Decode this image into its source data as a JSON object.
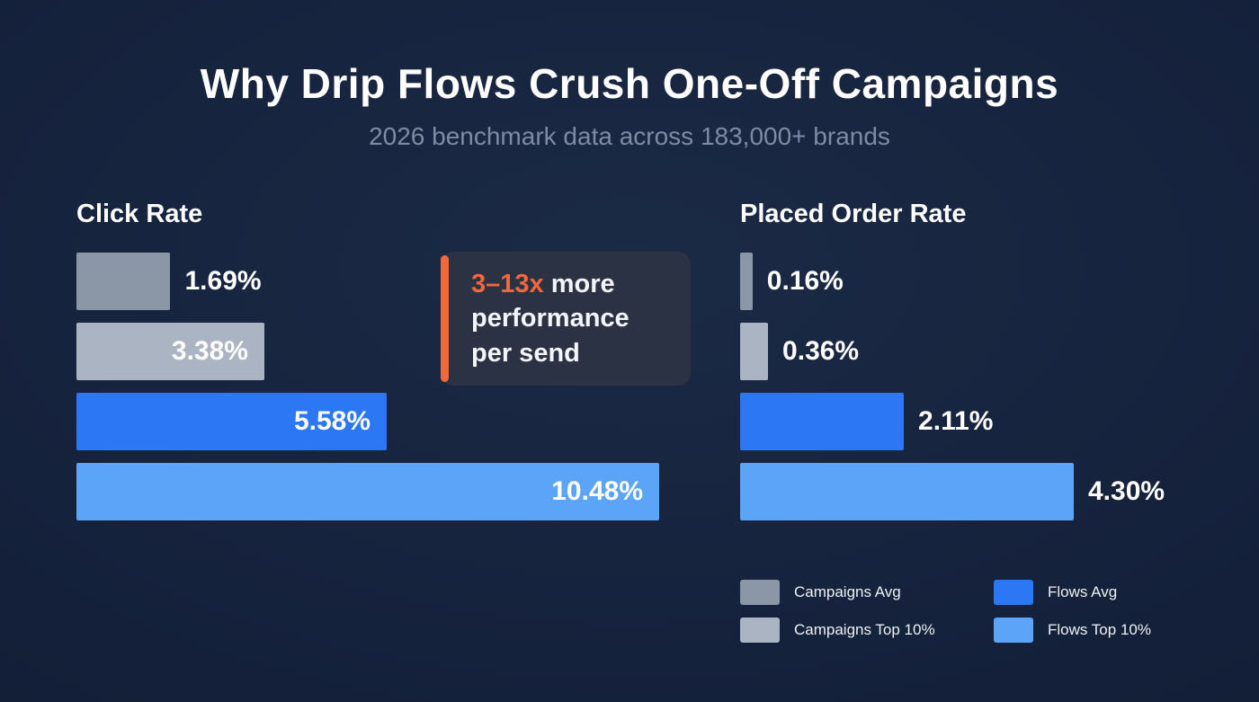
{
  "page": {
    "title": "Why Drip Flows Crush One-Off Campaigns",
    "subtitle": "2026 benchmark data across 183,000+ brands"
  },
  "colors": {
    "background": "#14203A",
    "campaigns_avg": "#8B96A6",
    "campaigns_top": "#AAB4C2",
    "flows_avg": "#2C78F4",
    "flows_top": "#5CA4F8",
    "accent_orange": "#F0683C",
    "callout_bg": "#2B3244",
    "subtitle_text": "#7E8BA2"
  },
  "callout": {
    "highlight": "3–13x",
    "line1_rest": " more",
    "line2": "performance",
    "line3": "per send"
  },
  "legend": [
    {
      "label": "Campaigns Avg",
      "color_key": "campaigns_avg"
    },
    {
      "label": "Flows Avg",
      "color_key": "flows_avg"
    },
    {
      "label": "Campaigns Top 10%",
      "color_key": "campaigns_top"
    },
    {
      "label": "Flows Top 10%",
      "color_key": "flows_top"
    }
  ],
  "chart_data": [
    {
      "type": "bar",
      "orientation": "horizontal",
      "title": "Click Rate",
      "categories": [
        "Campaigns Avg",
        "Campaigns Top 10%",
        "Flows Avg",
        "Flows Top 10%"
      ],
      "values": [
        1.69,
        3.38,
        5.58,
        10.48
      ],
      "value_labels": [
        "1.69%",
        "3.38%",
        "5.58%",
        "10.48%"
      ],
      "color_keys": [
        "campaigns_avg",
        "campaigns_top",
        "flows_avg",
        "flows_top"
      ],
      "unit": "%",
      "xlim": [
        0,
        10.48
      ],
      "grid": false,
      "legend_position": "none",
      "label_placement": "inside"
    },
    {
      "type": "bar",
      "orientation": "horizontal",
      "title": "Placed Order Rate",
      "categories": [
        "Campaigns Avg",
        "Campaigns Top 10%",
        "Flows Avg",
        "Flows Top 10%"
      ],
      "values": [
        0.16,
        0.36,
        2.11,
        4.3
      ],
      "value_labels": [
        "0.16%",
        "0.36%",
        "2.11%",
        "4.30%"
      ],
      "color_keys": [
        "campaigns_avg",
        "campaigns_top",
        "flows_avg",
        "flows_top"
      ],
      "unit": "%",
      "xlim": [
        0,
        4.3
      ],
      "grid": false,
      "legend_position": "bottom",
      "label_placement": "outside"
    }
  ]
}
